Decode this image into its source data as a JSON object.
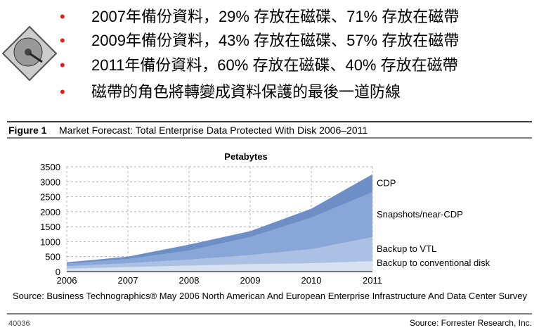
{
  "bullets": [
    "2007年備份資料，29% 存放在磁碟、71% 存放在磁帶",
    "2009年備份資料，43% 存放在磁碟、57% 存放在磁帶",
    "2011年備份資料，60% 存放在磁碟、40% 存放在磁帶",
    "磁帶的角色將轉變成資料保護的最後一道防線"
  ],
  "figure": {
    "label": "Figure 1",
    "title": "Market Forecast: Total Enterprise Data Protected With Disk 2006–2011"
  },
  "chart_data": {
    "type": "stacked-area",
    "title": "Petabytes",
    "categories": [
      "2006",
      "2007",
      "2008",
      "2009",
      "2010",
      "2011"
    ],
    "series": [
      {
        "name": "Backup to conventional disk",
        "color": "#d6e1f1",
        "values": [
          100,
          150,
          200,
          250,
          280,
          350
        ]
      },
      {
        "name": "Backup to VTL",
        "color": "#abc1e4",
        "values": [
          80,
          130,
          200,
          300,
          470,
          800
        ]
      },
      {
        "name": "Snapshots/near-CDP",
        "color": "#88a6d7",
        "values": [
          80,
          140,
          300,
          600,
          1050,
          1500
        ]
      },
      {
        "name": "CDP",
        "color": "#6e8fc6",
        "values": [
          50,
          80,
          200,
          200,
          300,
          600
        ]
      }
    ],
    "ylim": [
      0,
      3500
    ],
    "yticks": [
      0,
      500,
      1000,
      1500,
      2000,
      2500,
      3000,
      3500
    ],
    "grid": true
  },
  "source": "Source: Business Technographics® May 2006 North American And European Enterprise Infrastructure And Data Center Survey",
  "figure_id": "40036",
  "credit": "Source: Forrester Research, Inc."
}
